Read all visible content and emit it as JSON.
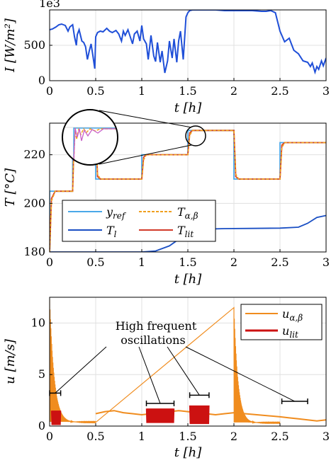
{
  "chart_data": [
    {
      "type": "line",
      "xlabel": "t [h]",
      "ylabel": "I [W/m²]",
      "y_exponent_label": "1e3",
      "xlim": [
        0,
        3
      ],
      "ylim": [
        0,
        1000
      ],
      "xticks": [
        "0",
        "0.5",
        "1",
        "1.5",
        "2",
        "2.5",
        "3"
      ],
      "yticks": [
        "0",
        "500"
      ],
      "grid": true,
      "series": [
        {
          "color": "#1f4fd8",
          "x": [
            0,
            0.03,
            0.07,
            0.1,
            0.13,
            0.17,
            0.2,
            0.22,
            0.25,
            0.27,
            0.29,
            0.3,
            0.32,
            0.35,
            0.37,
            0.39,
            0.41,
            0.43,
            0.45,
            0.47,
            0.49,
            0.5,
            0.52,
            0.55,
            0.58,
            0.62,
            0.65,
            0.68,
            0.72,
            0.75,
            0.78,
            0.8,
            0.82,
            0.85,
            0.88,
            0.9,
            0.92,
            0.95,
            0.98,
            1.0,
            1.02,
            1.05,
            1.07,
            1.1,
            1.13,
            1.15,
            1.17,
            1.2,
            1.22,
            1.25,
            1.28,
            1.3,
            1.33,
            1.35,
            1.38,
            1.4,
            1.42,
            1.45,
            1.48,
            1.5,
            1.52,
            1.55,
            1.6,
            1.7,
            1.8,
            1.9,
            2.0,
            2.1,
            2.2,
            2.3,
            2.35,
            2.4,
            2.45,
            2.5,
            2.55,
            2.6,
            2.65,
            2.7,
            2.75,
            2.8,
            2.83,
            2.85,
            2.88,
            2.9,
            2.92,
            2.95,
            2.97,
            3.0
          ],
          "y": [
            720,
            730,
            760,
            790,
            800,
            780,
            700,
            760,
            790,
            620,
            500,
            650,
            720,
            560,
            540,
            480,
            300,
            420,
            520,
            350,
            170,
            620,
            680,
            700,
            690,
            740,
            700,
            680,
            710,
            660,
            560,
            700,
            640,
            720,
            600,
            520,
            660,
            700,
            560,
            780,
            590,
            520,
            300,
            640,
            350,
            270,
            540,
            260,
            420,
            110,
            280,
            560,
            320,
            590,
            260,
            560,
            700,
            300,
            900,
            960,
            990,
            1000,
            1000,
            1000,
            1000,
            990,
            990,
            990,
            990,
            980,
            980,
            990,
            960,
            700,
            550,
            600,
            430,
            380,
            280,
            260,
            200,
            250,
            120,
            200,
            160,
            280,
            210,
            320
          ]
        }
      ]
    },
    {
      "type": "line",
      "xlabel": "t [h]",
      "ylabel": "T [°C]",
      "xlim": [
        0,
        3
      ],
      "ylim": [
        180,
        233
      ],
      "xticks": [
        "0",
        "0.5",
        "1",
        "1.5",
        "2",
        "2.5",
        "3"
      ],
      "yticks": [
        "180",
        "200",
        "220"
      ],
      "grid": true,
      "legend": "bottom-left",
      "series": [
        {
          "name": "y_ref",
          "color": "#4aa8e8",
          "x": [
            0,
            0,
            0.25,
            0.25,
            0.5,
            0.5,
            1.0,
            1.0,
            1.5,
            1.5,
            2.0,
            2.0,
            2.5,
            2.5,
            3.0
          ],
          "y": [
            180,
            205,
            205,
            232,
            232,
            210,
            210,
            220,
            220,
            230,
            230,
            210,
            210,
            225,
            225
          ]
        },
        {
          "name": "T_α,β",
          "color": "#f0a020",
          "x": [
            0,
            0.02,
            0.06,
            0.25,
            0.27,
            0.3,
            0.5,
            0.52,
            0.55,
            1.0,
            1.02,
            1.05,
            1.5,
            1.52,
            1.55,
            2.0,
            2.02,
            2.05,
            2.5,
            2.52,
            2.55,
            3.0
          ],
          "y": [
            180,
            201,
            205,
            205,
            232,
            232,
            232,
            212,
            210,
            210,
            218,
            220,
            220,
            228,
            230,
            230,
            212,
            210,
            210,
            223,
            225,
            225
          ]
        },
        {
          "name": "T_l",
          "color": "#1a4fc4",
          "x": [
            0,
            0.5,
            1.0,
            1.15,
            1.3,
            1.45,
            1.55,
            1.7,
            1.9,
            2.2,
            2.5,
            2.7,
            2.8,
            2.9,
            3.0
          ],
          "y": [
            180,
            180,
            180,
            180.4,
            182.5,
            186.5,
            188.8,
            189.4,
            189.6,
            189.7,
            189.8,
            190.2,
            191.8,
            194.2,
            195
          ]
        },
        {
          "name": "T_lit",
          "color": "#d23a2a",
          "x": [
            0,
            0.02,
            0.06,
            0.25,
            0.27,
            0.3,
            0.5,
            0.52,
            0.55,
            1.0,
            1.02,
            1.05,
            1.5,
            1.52,
            1.55,
            2.0,
            2.02,
            2.05,
            2.5,
            2.52,
            2.55,
            3.0
          ],
          "y": [
            180,
            202,
            205,
            205,
            232,
            232,
            232,
            211,
            210,
            210,
            219,
            220,
            220,
            229,
            230,
            230,
            211,
            210,
            210,
            224,
            225,
            225
          ]
        }
      ],
      "inset": {
        "shape": "circle",
        "zoom_region": [
          1.5,
          230
        ]
      }
    },
    {
      "type": "line",
      "xlabel": "t [h]",
      "ylabel": "u [m/s]",
      "xlim": [
        0,
        3
      ],
      "ylim": [
        0,
        12.5
      ],
      "xticks": [
        "0",
        "0.5",
        "1",
        "1.5",
        "2",
        "2.5",
        "3"
      ],
      "yticks": [
        "0",
        "5",
        "10"
      ],
      "grid": true,
      "legend": "top-right",
      "annotation": "High frequent oscillations",
      "annotation_brackets": [
        [
          0.0,
          0.12,
          3.2
        ],
        [
          1.05,
          1.35,
          2.2
        ],
        [
          1.52,
          1.73,
          3.0
        ],
        [
          2.52,
          2.8,
          2.4
        ]
      ],
      "series": [
        {
          "name": "u_α,β",
          "color": "#f08c1e",
          "burst_segments": [
            {
              "t_start": 0.0,
              "t_end": 0.5,
              "peak": 12,
              "decay": 2.5,
              "base": 1.2
            },
            {
              "t_start": 2.0,
              "t_end": 2.5,
              "peak": 11.2,
              "decay": 2.8,
              "base": 1.0
            }
          ],
          "smooth": {
            "x": [
              0.5,
              0.6,
              0.7,
              0.8,
              0.9,
              1.0,
              1.1,
              1.2,
              1.3,
              1.4,
              1.5,
              1.6,
              1.7,
              1.8,
              1.9,
              2.0,
              2.5,
              2.6,
              2.7,
              2.8,
              2.9,
              3.0
            ],
            "y": [
              1.2,
              1.4,
              1.5,
              1.3,
              1.2,
              1.1,
              1.2,
              1.3,
              1.4,
              1.5,
              1.4,
              1.3,
              1.2,
              1.1,
              1.2,
              1.3,
              0.9,
              0.8,
              0.7,
              0.6,
              0.5,
              0.6
            ]
          }
        },
        {
          "name": "u_lit",
          "color": "#cc1111",
          "oscillation_bands": [
            {
              "t_start": 0.02,
              "t_end": 0.12,
              "low": 0.1,
              "high": 1.5
            },
            {
              "t_start": 1.05,
              "t_end": 1.35,
              "low": 0.3,
              "high": 1.7
            },
            {
              "t_start": 1.52,
              "t_end": 1.73,
              "low": 0.2,
              "high": 2.0
            }
          ]
        }
      ]
    }
  ]
}
